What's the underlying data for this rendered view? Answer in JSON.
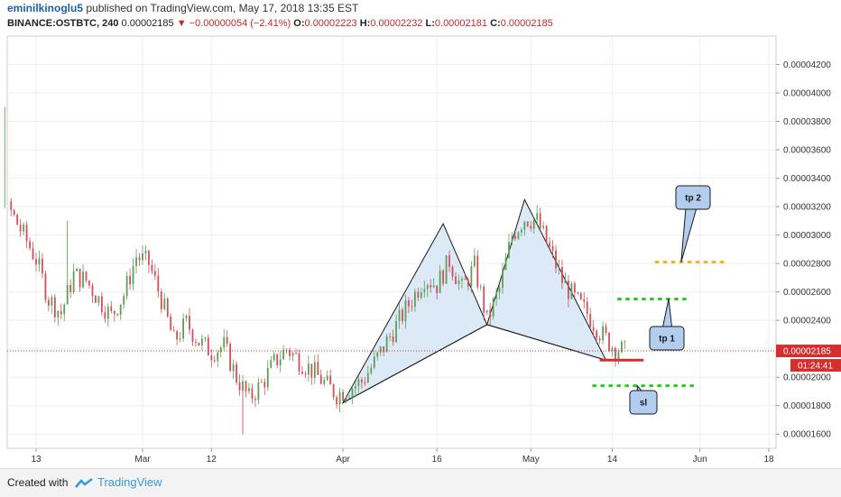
{
  "header": {
    "author": "eminilkinoglu5",
    "published_text": " published on TradingView.com, May 17, 2018 13:35 EST",
    "symbol": "BINANCE:OSTBTC, 240",
    "last": "0.00002185",
    "change": "−0.00000054 (−2.41%)",
    "o_label": "O:",
    "o_value": "0.00002223",
    "h_label": "H:",
    "h_value": "0.00002232",
    "l_label": "L:",
    "l_value": "0.00002181",
    "c_label": "C:",
    "c_value": "0.00002185"
  },
  "footer": {
    "created_with": "Created with",
    "brand": "TradingView"
  },
  "colors": {
    "up": "#5f9e55",
    "down": "#d05058",
    "pattern_fill": "#dce9f7",
    "price_line": "#d32f2f",
    "target_dots": "#22cc22",
    "tp2_dots": "#f2b51f",
    "callout_fill": "#b3cdef"
  },
  "chart_data": {
    "type": "candlestick",
    "y_axis": {
      "range": [
        1.5e-05,
        4.4e-05
      ],
      "ticks": [
        "0.00004200",
        "0.00004000",
        "0.00003800",
        "0.00003600",
        "0.00003400",
        "0.00003200",
        "0.00003000",
        "0.00002800",
        "0.00002600",
        "0.00002400",
        "0.00002200",
        "0.00002000",
        "0.00001800",
        "0.00001600"
      ]
    },
    "x_axis": {
      "ticks": [
        "13",
        "Mar",
        "12",
        "Apr",
        "16",
        "May",
        "14",
        "Jun",
        "18"
      ],
      "tick_days": [
        -4,
        13,
        24,
        45,
        60,
        75,
        88,
        102,
        113
      ]
    },
    "last_price_label": "0.00002185",
    "countdown_label": "01:24:41",
    "price_series": [
      [
        -16,
        3.65e-05
      ],
      [
        -14,
        3.52e-05
      ],
      [
        -12,
        3.4e-05
      ],
      [
        -10,
        3.22e-05
      ],
      [
        -8,
        3.16e-05
      ],
      [
        -6,
        3e-05
      ],
      [
        -4,
        2.83e-05
      ],
      [
        -2,
        2.55e-05
      ],
      [
        0,
        2.45e-05
      ],
      [
        2,
        2.72e-05
      ],
      [
        4,
        2.68e-05
      ],
      [
        6,
        2.55e-05
      ],
      [
        8,
        2.43e-05
      ],
      [
        10,
        2.58e-05
      ],
      [
        12,
        2.85e-05
      ],
      [
        14,
        2.8e-05
      ],
      [
        16,
        2.55e-05
      ],
      [
        18,
        2.25e-05
      ],
      [
        20,
        2.38e-05
      ],
      [
        22,
        2.25e-05
      ],
      [
        24,
        2.18e-05
      ],
      [
        26,
        2.22e-05
      ],
      [
        28,
        2e-05
      ],
      [
        30,
        1.85e-05
      ],
      [
        32,
        1.95e-05
      ],
      [
        34,
        2.1e-05
      ],
      [
        36,
        2.2e-05
      ],
      [
        38,
        2.12e-05
      ],
      [
        40,
        2.05e-05
      ],
      [
        42,
        1.96e-05
      ],
      [
        44,
        1.88e-05
      ],
      [
        46,
        1.92e-05
      ],
      [
        48,
        1.97e-05
      ],
      [
        50,
        2.1e-05
      ],
      [
        52,
        2.25e-05
      ],
      [
        54,
        2.4e-05
      ],
      [
        56,
        2.55e-05
      ],
      [
        58,
        2.7e-05
      ],
      [
        60,
        2.65e-05
      ],
      [
        62,
        2.82e-05
      ],
      [
        64,
        2.62e-05
      ],
      [
        66,
        2.78e-05
      ],
      [
        68,
        2.4e-05
      ],
      [
        70,
        2.62e-05
      ],
      [
        72,
        3e-05
      ],
      [
        74,
        3.12e-05
      ],
      [
        76,
        3.1e-05
      ],
      [
        78,
        2.9e-05
      ],
      [
        80,
        2.68e-05
      ],
      [
        82,
        2.55e-05
      ],
      [
        84,
        2.45e-05
      ],
      [
        86,
        2.32e-05
      ],
      [
        88,
        2.22e-05
      ],
      [
        90,
        2.18e-05
      ]
    ],
    "wicks": [
      [
        -16,
        4.2e-05
      ],
      [
        -9,
        3.9e-05
      ],
      [
        1,
        3.1e-05
      ],
      [
        29,
        1.6e-05
      ]
    ],
    "pattern": {
      "type": "harmonic",
      "points": [
        [
          45,
          1.82e-05
        ],
        [
          61,
          3.08e-05
        ],
        [
          68,
          2.37e-05
        ],
        [
          74,
          3.25e-05
        ],
        [
          87,
          2.12e-05
        ]
      ]
    },
    "levels": [
      {
        "name": "entry",
        "price": 2.12e-05,
        "from": 86,
        "to": 93,
        "style": "solid"
      },
      {
        "name": "sl",
        "price": 1.94e-05,
        "from": 85,
        "to": 101,
        "style": "dotted"
      },
      {
        "name": "tp 1",
        "price": 2.55e-05,
        "from": 89,
        "to": 100,
        "style": "dotted"
      },
      {
        "name": "tp 2",
        "price": 2.81e-05,
        "from": 95,
        "to": 106,
        "style": "dotted"
      }
    ],
    "annotations": [
      {
        "text": "tp 2",
        "anchor": [
          99,
          2.81e-05
        ]
      },
      {
        "text": "tp 1",
        "anchor": [
          97,
          2.55e-05
        ]
      },
      {
        "text": "sl",
        "anchor": [
          92,
          1.94e-05
        ]
      }
    ]
  }
}
